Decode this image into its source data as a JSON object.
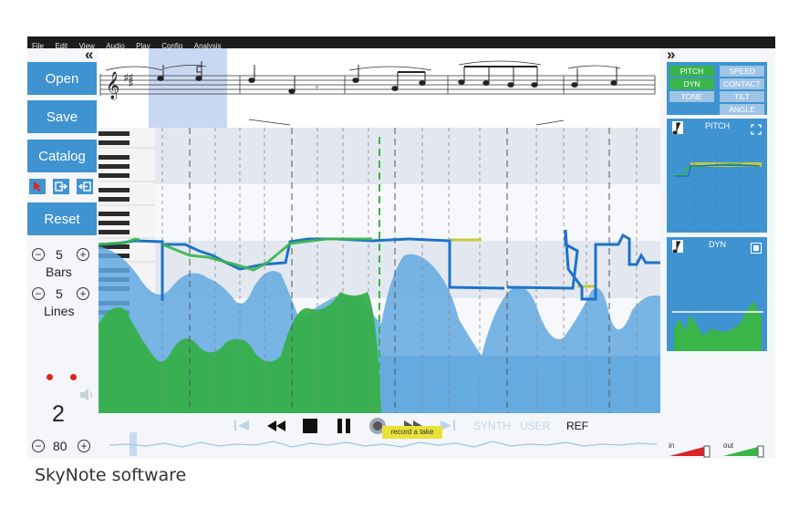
{
  "menu": [
    "File",
    "Edit",
    "View",
    "Audio",
    "Play",
    "Config",
    "Analysis"
  ],
  "left": {
    "collapse_glyph": "«",
    "open": "Open",
    "save": "Save",
    "catalog": "Catalog",
    "reset": "Reset",
    "bars_value": "5",
    "bars_label": "Bars",
    "lines_value": "5",
    "lines_label": "Lines",
    "minus": "−",
    "plus": "+",
    "count": "2",
    "tempo": "80"
  },
  "right": {
    "expand_glyph": "»",
    "params": [
      {
        "label": "PITCH",
        "active": true
      },
      {
        "label": "SPEED",
        "active": false
      },
      {
        "label": "DYN",
        "active": true
      },
      {
        "label": "CONTACT",
        "active": false
      },
      {
        "label": "TONE",
        "active": false
      },
      {
        "label": "TILT",
        "active": false
      },
      {
        "label": "ANGLE",
        "active": false
      }
    ],
    "pitch_title": "PITCH",
    "dyn_title": "DYN",
    "in_label": "in",
    "out_label": "out"
  },
  "transport": {
    "tooltip": "record a take",
    "modes": [
      "SYNTH",
      "USER",
      "REF"
    ]
  },
  "caption": "SkyNote software",
  "colors": {
    "accent": "#3f93d0",
    "green": "#39b54a",
    "pitch_line": "#1e73c8",
    "record": "#e2231a"
  }
}
